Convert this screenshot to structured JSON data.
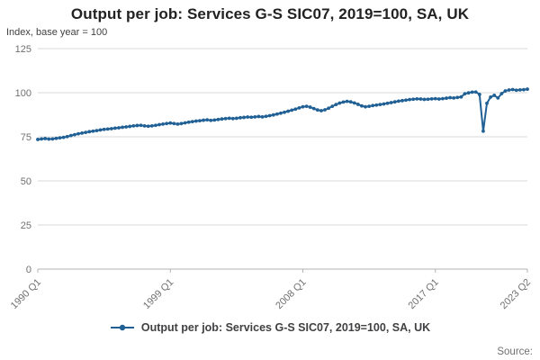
{
  "page": {
    "title": "Output per job: Services G-S SIC07, 2019=100, SA, UK"
  },
  "footer": {
    "source_label": "Source:"
  },
  "colors": {
    "line": "#206095",
    "grid": "#d9d9d9",
    "axis": "#b3b3b3",
    "tick_text": "#707071",
    "title_text": "#222222"
  },
  "chart_data": {
    "type": "line",
    "title": "Output per job: Services G-S SIC07, 2019=100, SA, UK",
    "ylabel": "Index, base year = 100",
    "legend_position": "bottom",
    "grid": "horizontal",
    "ylim": [
      0,
      125
    ],
    "y_ticks": [
      0,
      25,
      50,
      75,
      100,
      125
    ],
    "x_start": "1990 Q1",
    "x_end": "2023 Q2",
    "frequency": "quarterly",
    "x_ticks": [
      {
        "index": 0,
        "label": "1990 Q1"
      },
      {
        "index": 36,
        "label": "1999 Q1"
      },
      {
        "index": 72,
        "label": "2008 Q1"
      },
      {
        "index": 108,
        "label": "2017 Q1"
      },
      {
        "index": 133,
        "label": "2023 Q2"
      }
    ],
    "series": [
      {
        "name": "Output per job: Services G-S SIC07, 2019=100, SA, UK",
        "color": "#206095",
        "values": [
          73.5,
          73.8,
          74.0,
          73.7,
          73.8,
          74.1,
          74.4,
          74.7,
          75.1,
          75.7,
          76.2,
          76.7,
          77.1,
          77.5,
          77.9,
          78.2,
          78.5,
          78.9,
          79.2,
          79.4,
          79.6,
          79.9,
          80.1,
          80.4,
          80.6,
          80.9,
          81.2,
          81.4,
          81.5,
          81.2,
          81.0,
          81.2,
          81.5,
          81.9,
          82.2,
          82.5,
          82.8,
          82.5,
          82.2,
          82.5,
          82.9,
          83.3,
          83.6,
          83.9,
          84.1,
          84.4,
          84.6,
          84.3,
          84.5,
          84.8,
          85.1,
          85.3,
          85.5,
          85.3,
          85.5,
          85.8,
          86.0,
          86.2,
          86.1,
          86.3,
          86.5,
          86.3,
          86.6,
          87.0,
          87.4,
          87.9,
          88.4,
          88.9,
          89.5,
          90.1,
          90.7,
          91.4,
          92.0,
          92.3,
          91.8,
          91.0,
          90.2,
          89.8,
          90.3,
          91.2,
          92.3,
          93.3,
          94.1,
          94.7,
          95.1,
          94.8,
          94.2,
          93.4,
          92.5,
          92.0,
          92.3,
          92.7,
          93.0,
          93.3,
          93.6,
          94.0,
          94.4,
          94.8,
          95.2,
          95.5,
          95.8,
          96.1,
          96.3,
          96.5,
          96.4,
          96.2,
          96.3,
          96.5,
          96.6,
          96.4,
          96.6,
          96.9,
          97.2,
          97.0,
          97.3,
          97.6,
          99.4,
          99.9,
          100.3,
          100.4,
          99.0,
          78.2,
          94.0,
          97.5,
          98.5,
          97.0,
          99.5,
          101.0,
          101.5,
          101.8,
          101.4,
          101.6,
          101.7,
          102.0
        ]
      }
    ]
  }
}
